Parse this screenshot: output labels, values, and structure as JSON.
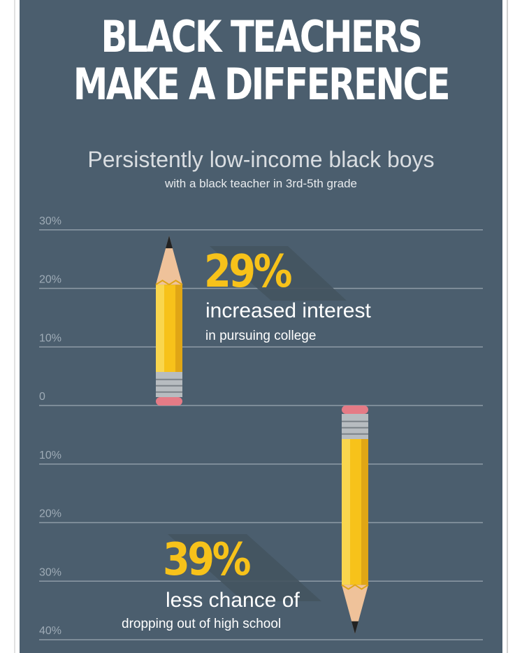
{
  "header": {
    "title_line1": "BLACK TEACHERS",
    "title_line2": "MAKE A DIFFERENCE",
    "subtitle": "Persistently low-income black boys",
    "subtitle2": "with a black teacher in 3rd-5th grade"
  },
  "chart_data": {
    "type": "bar",
    "title": "",
    "ylim": [
      -40,
      30
    ],
    "yticks": [
      30,
      20,
      10,
      0,
      -10,
      -20,
      -30,
      -40
    ],
    "ytick_labels": [
      "30%",
      "20%",
      "10%",
      "0",
      "10%",
      "20%",
      "30%",
      "40%"
    ],
    "grid": true,
    "bars": [
      {
        "value": 29,
        "label": "29%",
        "caption": "increased interest",
        "subcaption": "in pursuing college"
      },
      {
        "value": -39,
        "label": "39%",
        "caption": "less chance of",
        "subcaption": "dropping out of high school"
      }
    ]
  },
  "colors": {
    "background": "#4b5e6e",
    "accent": "#f7c21a",
    "gridline": "#8e9ba6"
  }
}
